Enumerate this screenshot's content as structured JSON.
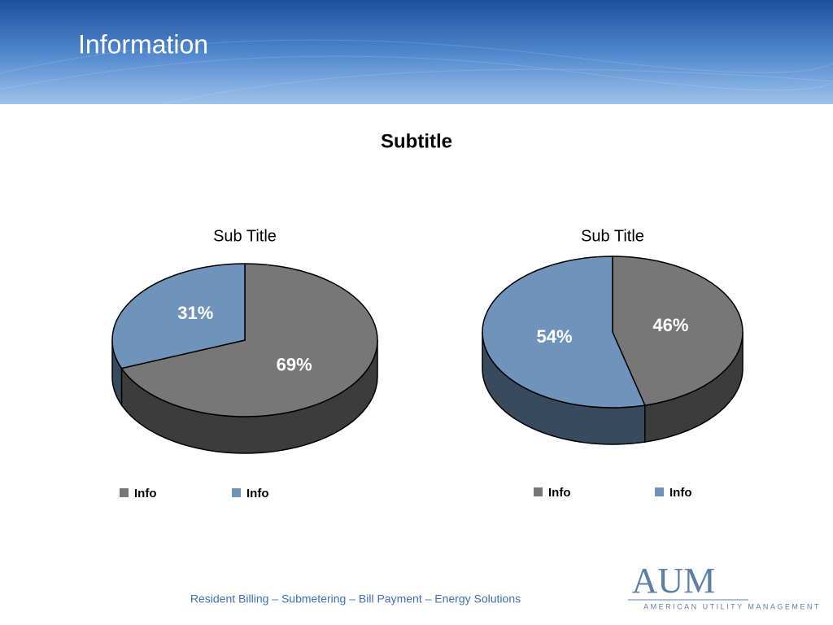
{
  "header": {
    "title": "Information"
  },
  "subtitle": "Subtitle",
  "chart_data": [
    {
      "type": "pie",
      "title": "Sub Title",
      "categories": [
        "Info",
        "Info"
      ],
      "values": [
        69,
        31
      ],
      "value_labels": [
        "69%",
        "31%"
      ],
      "colors": [
        "#777777",
        "#7093bb"
      ]
    },
    {
      "type": "pie",
      "title": "Sub Title",
      "categories": [
        "Info",
        "Info"
      ],
      "values": [
        46,
        54
      ],
      "value_labels": [
        "46%",
        "54%"
      ],
      "colors": [
        "#777777",
        "#7093bb"
      ]
    }
  ],
  "footer": {
    "tagline": "Resident Billing – Submetering – Bill Payment – Energy Solutions",
    "logo": "AUM",
    "company": "American Utility Management"
  }
}
